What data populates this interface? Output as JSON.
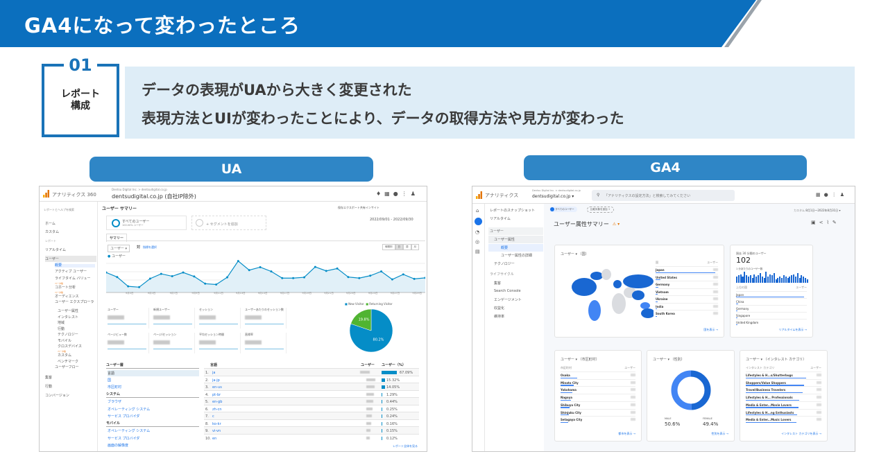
{
  "slide": {
    "title": "GA4になって変わったところ",
    "section_number": "01",
    "section_label_line1": "レポート",
    "section_label_line2": "構成",
    "point1": "データの表現がUAから大きく変更された",
    "point2": "表現方法とUIが変わったことにより、データの取得方法や見方が変わった",
    "label_ua": "UA",
    "label_ga4": "GA4",
    "colors": {
      "header": "#0b6fbe",
      "accent_box": "#1a73b8",
      "panel": "#deedf7",
      "pill": "#2f86c6"
    }
  },
  "ua": {
    "app_name": "アナリティクス 360",
    "breadcrumb": "Dentsu Digital Inc. > dentsudigital.co.jp",
    "property": "dentsudigital.co.jp (自社IP除外)",
    "search_placeholder": "レポートとヘルプを検索",
    "nav": [
      "ホーム",
      "カスタム"
    ],
    "reports_heading": "レポート",
    "nav2": [
      "リアルタイム",
      "ユーザー"
    ],
    "user_sub": [
      "概要",
      "アクティブ ユーザー",
      "ライフタイム バリュー",
      "コホート分析",
      "オーディエンス",
      "ユーザー エクスプローラ",
      "ユーザー属性",
      "インタレスト",
      "地域",
      "行動",
      "テクノロジー",
      "モバイル",
      "クロスデバイス",
      "カスタム",
      "ベンチマーク",
      "ユーザーフロー"
    ],
    "beta": "ベータ版",
    "nav3": [
      "集客",
      "行動",
      "コンバージョン"
    ],
    "page_title": "ユーザー サマリー",
    "actions": [
      "保存",
      "エクスポート",
      "共有",
      "インサイト"
    ],
    "segment_all": "すべてのユーザー",
    "segment_all_sub": "100.00% ユーザー",
    "segment_add": "+ セグメントを追加",
    "date_range": "2022/09/01 - 2022/09/30",
    "tab": "サマリー",
    "metric_select": "ユーザー",
    "vs": "対",
    "select_metric": "指標を選択",
    "granularity": [
      "時間別",
      "日",
      "週",
      "月"
    ],
    "series_label": "ユーザー",
    "x_labels": [
      "9月3日",
      "9月5日",
      "9月7日",
      "9月9日",
      "9月11日",
      "9月13日",
      "9月15日",
      "9月17日",
      "9月19日",
      "9月21日",
      "9月23日",
      "9月25日",
      "9月27日",
      "9月29日"
    ],
    "users_trend": [
      75,
      58,
      23,
      20,
      52,
      70,
      61,
      75,
      60,
      33,
      30,
      57,
      118,
      84,
      95,
      79,
      54,
      54,
      57,
      96,
      81,
      90,
      58,
      54,
      63,
      79,
      49,
      68,
      51,
      55
    ],
    "metrics": [
      "ユーザー",
      "新規ユーザー",
      "セッション",
      "ユーザーあたりのセッション数",
      "ページビュー数",
      "ページ/セッション",
      "平均セッション時間",
      "直帰率"
    ],
    "pie": {
      "legend": [
        "New Visitor",
        "Returning Visitor"
      ],
      "values": [
        80.2,
        19.8
      ],
      "labels": [
        "80.2%",
        "19.8%"
      ],
      "colors": [
        "#058dc7",
        "#50b432"
      ]
    },
    "dim_heading": "ユーザー層",
    "dims": [
      "言語",
      "国",
      "市区町村"
    ],
    "sys_heading": "システム",
    "sys": [
      "ブラウザ",
      "オペレーティング システム",
      "サービス プロバイダ"
    ],
    "mob_heading": "モバイル",
    "mob": [
      "オペレーティング システム",
      "サービス プロバイダ",
      "画面の解像度"
    ],
    "table_headers": [
      "言語",
      "ユーザー",
      "ユーザー（%）"
    ],
    "languages": [
      {
        "n": "1.",
        "lang": "ja",
        "pct": "67.09%",
        "v": 67.09
      },
      {
        "n": "2.",
        "lang": "ja-jp",
        "pct": "15.32%",
        "v": 15.32
      },
      {
        "n": "3.",
        "lang": "en-us",
        "pct": "14.05%",
        "v": 14.05
      },
      {
        "n": "4.",
        "lang": "pt-br",
        "pct": "1.29%",
        "v": 1.29
      },
      {
        "n": "5.",
        "lang": "en-gb",
        "pct": "0.44%",
        "v": 0.44
      },
      {
        "n": "6.",
        "lang": "zh-cn",
        "pct": "0.25%",
        "v": 0.25
      },
      {
        "n": "7.",
        "lang": "c",
        "pct": "0.24%",
        "v": 0.24
      },
      {
        "n": "8.",
        "lang": "ko-kr",
        "pct": "0.16%",
        "v": 0.16
      },
      {
        "n": "9.",
        "lang": "vi-vn",
        "pct": "0.15%",
        "v": 0.15
      },
      {
        "n": "10.",
        "lang": "en",
        "pct": "0.12%",
        "v": 0.12
      }
    ],
    "full_report": "レポート全体を見る"
  },
  "ga4": {
    "app_name": "アナリティクス",
    "breadcrumb": "Dentsu Digital Inc. > dentsudigital.co.jp",
    "property": "dentsudigital.co.jp",
    "search_placeholder": "「アナリティクスの設定方法」と検索してみてください",
    "nav_top": [
      "レポートのスナップショット",
      "リアルタイム"
    ],
    "users_section": "ユーザー",
    "user_attr": "ユーザー属性",
    "overview": "概要",
    "attr_detail": "ユーザー属性の詳細",
    "technology": "テクノロジー",
    "lifecycle": "ライフサイクル",
    "lifecycle_items": [
      "集客",
      "Search Console",
      "エンゲージメント",
      "収益化"
    ],
    "retention": "維持率",
    "segment": "すべてのユーザー",
    "compare": "比較対象を追加",
    "date_prefix": "カスタム",
    "date_range": "8月1日〜2022年8月31日",
    "page_title": "ユーザー属性サマリー",
    "country_card": {
      "title": "ユーザー ▾ （国）",
      "col1": "国",
      "col2": "ユーザー",
      "rows": [
        "Japan",
        "United States",
        "Germany",
        "Vietnam",
        "Ukraine",
        "India",
        "South Korea"
      ],
      "bars": [
        95,
        8,
        4,
        3,
        3,
        2,
        2
      ],
      "link": "国を表示 →"
    },
    "realtime_card": {
      "title": "過去 30 分間のユーザー",
      "value": "102",
      "sub": "1 分あたりのユーザー数",
      "per_minute": [
        5,
        6,
        7,
        5,
        9,
        6,
        5,
        6,
        4,
        7,
        5,
        6,
        8,
        5,
        4,
        9,
        5,
        7,
        6,
        8,
        3,
        4,
        5,
        4,
        6,
        5,
        4,
        5,
        6,
        7,
        5,
        8,
        4,
        6,
        5,
        4,
        3
      ],
      "col1": "上位の国",
      "col2": "ユーザー",
      "rows": [
        "Japan",
        "China",
        "Germany",
        "Singapore",
        "United Kingdom"
      ],
      "bars": [
        96,
        3,
        2,
        2,
        2
      ],
      "link": "リアルタイムを表示 →"
    },
    "city_card": {
      "title": "ユーザー ▾ （市区町村）",
      "col1": "市区町村",
      "col2": "ユーザー",
      "rows": [
        "Osaka",
        "Minato City",
        "Yokohama",
        "Nagoya",
        "Shibuya City",
        "Shinjuku City",
        "Setagaya City"
      ],
      "bars": [
        22,
        18,
        16,
        14,
        12,
        11,
        10
      ],
      "link": "都市を表示 →"
    },
    "gender_card": {
      "title": "ユーザー ▾ （性別）",
      "labels": [
        "MALE",
        "FEMALE"
      ],
      "values": [
        "50.6%",
        "49.4%"
      ],
      "pct": [
        50.6,
        49.4
      ],
      "colors": [
        "#4285f4",
        "#1967d2"
      ],
      "link": "性別を表示 →"
    },
    "interest_card": {
      "title": "ユーザー ▾ （インタレスト カテゴリ）",
      "col1": "インタレスト カテゴリ",
      "col2": "ユーザー",
      "rows": [
        "Lifestyles & H...s/Shutterbugs",
        "Shoppers/Value Shoppers",
        "Travel/Business Travelers",
        "Lifestyles & H... Professionals",
        "Media & Enter...Movie Lovers",
        "Lifestyles & H...ng Enthusiasts",
        "Media & Enter...Music Lovers"
      ],
      "bars": [
        80,
        77,
        75,
        71,
        70,
        68,
        67
      ],
      "link": "インタレスト カテゴリを表示 →"
    }
  }
}
